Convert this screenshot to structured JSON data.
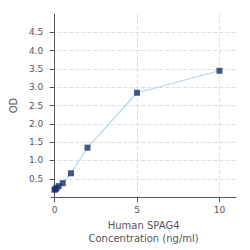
{
  "chart_data": {
    "type": "line",
    "xlabel": "Human SPAG4\nConcentration (ng/ml)",
    "ylabel": "OD",
    "x": [
      0,
      0.0625,
      0.125,
      0.25,
      0.5,
      1,
      2,
      5,
      10
    ],
    "series": [
      {
        "type": "line",
        "color": "#b8d4e8",
        "values": [
          0.2,
          0.22,
          0.25,
          0.3,
          0.38,
          0.65,
          1.35,
          2.85,
          3.45
        ]
      },
      {
        "type": "scatter",
        "color": "#1a2f6b",
        "marker": "square",
        "values": [
          0.2,
          0.22,
          0.25,
          0.3,
          0.38,
          0.65,
          1.35,
          2.85,
          3.45
        ]
      }
    ],
    "xlim": [
      -0.2,
      11
    ],
    "xticks": [
      0,
      5,
      10
    ],
    "ylim": [
      0,
      5.0
    ],
    "yticks": [
      0.5,
      {
        "value": 1.0,
        "label": "1.0"
      },
      1.5,
      {
        "value": 2.0,
        "label": "2.0"
      },
      2.5,
      {
        "value": 3.0,
        "label": "3.0"
      },
      3.5,
      {
        "value": 4.0,
        "label": "4.0"
      },
      4.5
    ],
    "grid": true
  }
}
